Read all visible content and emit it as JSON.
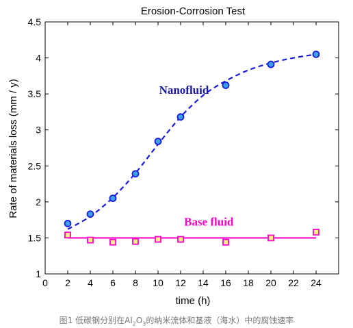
{
  "chart_data": {
    "type": "line",
    "title": "Erosion-Corrosion Test",
    "xlabel": "time (h)",
    "ylabel": "Rate of materials loss (mm / y)",
    "xlim": [
      0,
      26
    ],
    "ylim": [
      1,
      4.5
    ],
    "xticks": [
      "0",
      "2",
      "4",
      "6",
      "8",
      "10",
      "12",
      "14",
      "16",
      "18",
      "20",
      "22",
      "24"
    ],
    "yticks": [
      "1",
      "1.5",
      "2",
      "2.5",
      "3",
      "3.5",
      "4",
      "4.5"
    ],
    "grid": false,
    "series": [
      {
        "name": "Nanofluid",
        "color": "#1a1adb",
        "marker": "circle",
        "marker_fill": "#3aa0e8",
        "line_style": "dashed",
        "points": [
          [
            2,
            1.7
          ],
          [
            4,
            1.83
          ],
          [
            6,
            2.05
          ],
          [
            8,
            2.39
          ],
          [
            10,
            2.84
          ],
          [
            12,
            3.18
          ],
          [
            16,
            3.62
          ],
          [
            20,
            3.91
          ],
          [
            24,
            4.05
          ]
        ],
        "fit": [
          [
            2,
            1.62
          ],
          [
            4,
            1.8
          ],
          [
            6,
            2.06
          ],
          [
            8,
            2.4
          ],
          [
            10,
            2.8
          ],
          [
            12,
            3.18
          ],
          [
            14,
            3.48
          ],
          [
            16,
            3.68
          ],
          [
            18,
            3.83
          ],
          [
            20,
            3.93
          ],
          [
            22,
            4.0
          ],
          [
            24,
            4.05
          ]
        ]
      },
      {
        "name": "Base fluid",
        "color": "#ff00cc",
        "marker": "square",
        "marker_fill": "#ffee88",
        "line_style": "solid",
        "points": [
          [
            2,
            1.54
          ],
          [
            4,
            1.47
          ],
          [
            6,
            1.44
          ],
          [
            8,
            1.45
          ],
          [
            10,
            1.48
          ],
          [
            12,
            1.48
          ],
          [
            16,
            1.44
          ],
          [
            20,
            1.5
          ],
          [
            24,
            1.58
          ]
        ],
        "fit": [
          [
            2,
            1.5
          ],
          [
            24,
            1.5
          ]
        ]
      }
    ]
  },
  "caption": {
    "before": "图1 低碳钢分别在Al",
    "sub1": "2",
    "middle": "O",
    "sub2": "3",
    "after": "的纳米流体和基液（海水）中的腐蚀速率"
  }
}
